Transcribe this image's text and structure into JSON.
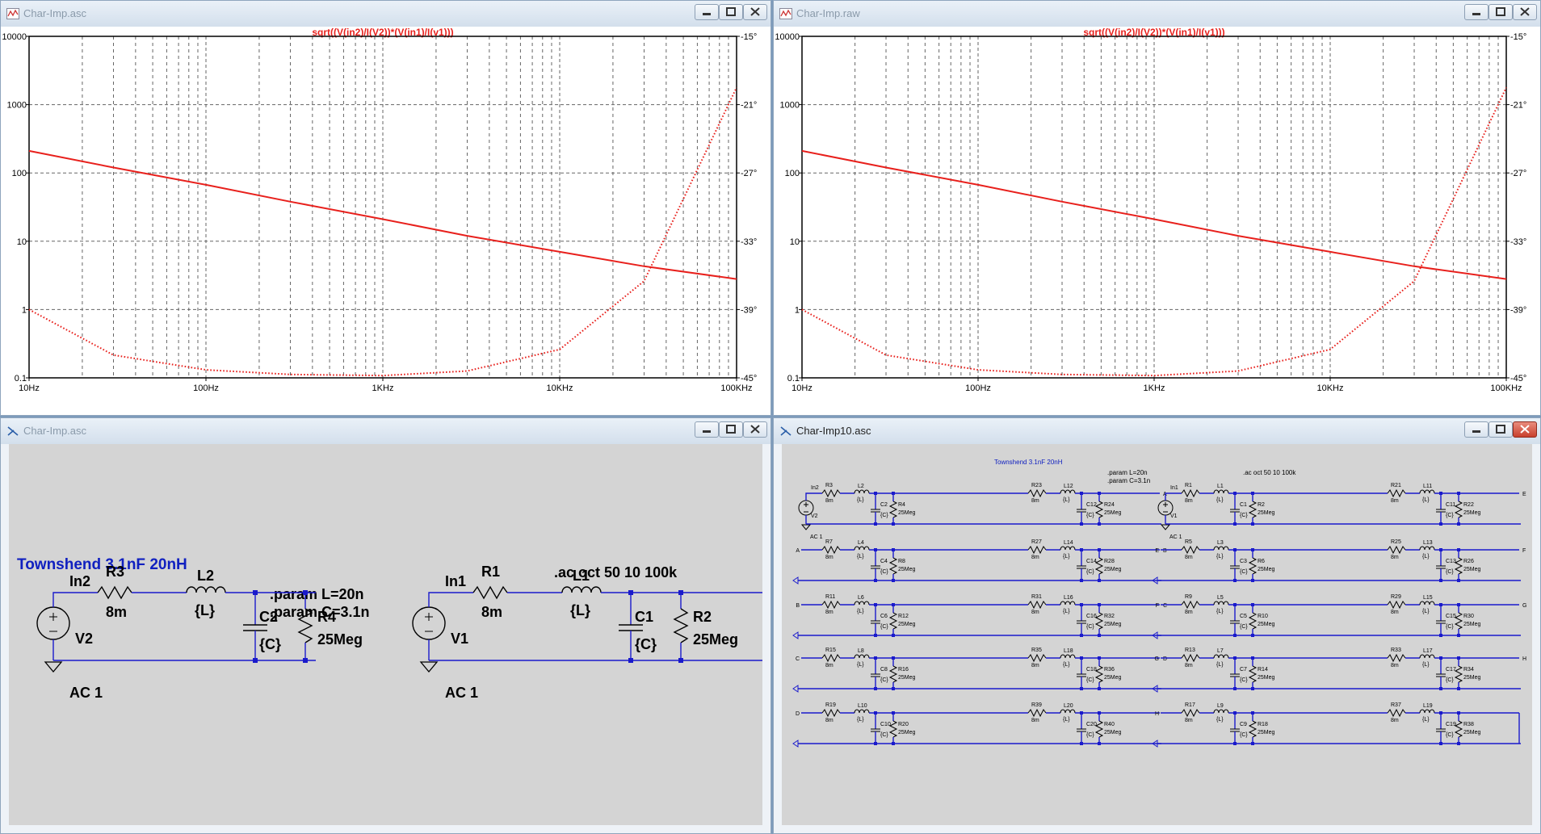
{
  "windows": {
    "tl": {
      "title": "Char-Imp.asc"
    },
    "tr": {
      "title": "Char-Imp.raw"
    },
    "bl": {
      "title": "Char-Imp.asc"
    },
    "br": {
      "title": "Char-Imp10.asc"
    }
  },
  "plot": {
    "trace_label": "sqrt((V(in2)/I(V2))*(V(in1)/I(v1)))",
    "left_axis_ticks": [
      "10000",
      "1000",
      "100",
      "10",
      "1",
      "0.1"
    ],
    "right_axis_ticks": [
      "-15°",
      "-21°",
      "-27°",
      "-33°",
      "-39°",
      "-45°"
    ],
    "x_axis_ticks": [
      "10Hz",
      "100Hz",
      "1KHz",
      "10KHz",
      "100KHz"
    ],
    "colors": {
      "trace": "#e8201c",
      "grid": "#666666"
    }
  },
  "chart_data": {
    "type": "line",
    "title": "sqrt((V(in2)/I(V2))*(V(in1)/I(v1)))",
    "x_scale": "log",
    "xlim": [
      10,
      100000
    ],
    "ylim": [
      0.1,
      10000
    ],
    "y_scale": "log",
    "y2lim": [
      -45,
      -15
    ],
    "series": [
      {
        "style": "solid",
        "axis": "left",
        "x": [
          10,
          30,
          100,
          300,
          1000,
          3000,
          10000,
          30000,
          100000
        ],
        "values": [
          210,
          120,
          67,
          38,
          21,
          12,
          7,
          4.3,
          2.8
        ]
      },
      {
        "style": "dotted",
        "axis": "right",
        "x": [
          10,
          30,
          100,
          300,
          1000,
          3000,
          10000,
          30000,
          100000
        ],
        "values": [
          -39,
          -43,
          -44.3,
          -44.7,
          -44.8,
          -44.4,
          -42.5,
          -36.5,
          -19.5
        ]
      }
    ]
  },
  "schematic_small": {
    "title": "Townshend 3.1nF 20nH",
    "param_l": ".param L=20n",
    "param_c": ".param C=3.1n",
    "ac_cmd": ".ac oct 50 10 100k",
    "left": {
      "node": "In2",
      "r": "R3",
      "rv": "8m",
      "l": "L2",
      "lv": "{L}",
      "c": "C2",
      "cv": "{C}",
      "rp": "R4",
      "rpv": "25Meg",
      "src": "V2",
      "ac": "AC 1"
    },
    "right": {
      "node": "In1",
      "r": "R1",
      "rv": "8m",
      "l": "L1",
      "lv": "{L}",
      "c": "C1",
      "cv": "{C}",
      "rp": "R2",
      "rpv": "25Meg",
      "src": "V1",
      "ac": "AC 1"
    }
  },
  "schematic_large": {
    "title": "Townshend 3.1nF 20nH",
    "param_l": ".param L=20n",
    "param_c": ".param C=3.1n",
    "ac_cmd": ".ac oct 50 10 100k",
    "common": {
      "rv": "8m",
      "lv": "{L}",
      "cv": "{C}",
      "rpv": "25Meg",
      "ac": "AC 1"
    },
    "left": {
      "node": "In2",
      "src": "V2",
      "rows": [
        {
          "in": "",
          "out": "A",
          "s1": [
            "R3",
            "L2",
            "C2",
            "R4"
          ],
          "s2": [
            "R23",
            "L12",
            "C12",
            "R24"
          ]
        },
        {
          "in": "A",
          "out": "B",
          "s1": [
            "R7",
            "L4",
            "C4",
            "R8"
          ],
          "s2": [
            "R27",
            "L14",
            "C14",
            "R28"
          ]
        },
        {
          "in": "B",
          "out": "C",
          "s1": [
            "R11",
            "L6",
            "C6",
            "R12"
          ],
          "s2": [
            "R31",
            "L16",
            "C16",
            "R32"
          ]
        },
        {
          "in": "C",
          "out": "D",
          "s1": [
            "R15",
            "L8",
            "C8",
            "R16"
          ],
          "s2": [
            "R35",
            "L18",
            "C18",
            "R36"
          ]
        },
        {
          "in": "D",
          "out": "",
          "s1": [
            "R19",
            "L10",
            "C10",
            "R20"
          ],
          "s2": [
            "R39",
            "L20",
            "C20",
            "R40"
          ]
        }
      ]
    },
    "right": {
      "node": "In1",
      "src": "V1",
      "rows": [
        {
          "in": "",
          "out": "E",
          "s1": [
            "R1",
            "L1",
            "C1",
            "R2"
          ],
          "s2": [
            "R21",
            "L11",
            "C11",
            "R22"
          ]
        },
        {
          "in": "E",
          "out": "F",
          "s1": [
            "R5",
            "L3",
            "C3",
            "R6"
          ],
          "s2": [
            "R25",
            "L13",
            "C13",
            "R26"
          ]
        },
        {
          "in": "F",
          "out": "G",
          "s1": [
            "R9",
            "L5",
            "C5",
            "R10"
          ],
          "s2": [
            "R29",
            "L15",
            "C15",
            "R30"
          ]
        },
        {
          "in": "G",
          "out": "H",
          "s1": [
            "R13",
            "L7",
            "C7",
            "R14"
          ],
          "s2": [
            "R33",
            "L17",
            "C17",
            "R34"
          ]
        },
        {
          "in": "H",
          "out": "",
          "s1": [
            "R17",
            "L9",
            "C9",
            "R18"
          ],
          "s2": [
            "R37",
            "L19",
            "C19",
            "R38"
          ]
        }
      ]
    }
  }
}
